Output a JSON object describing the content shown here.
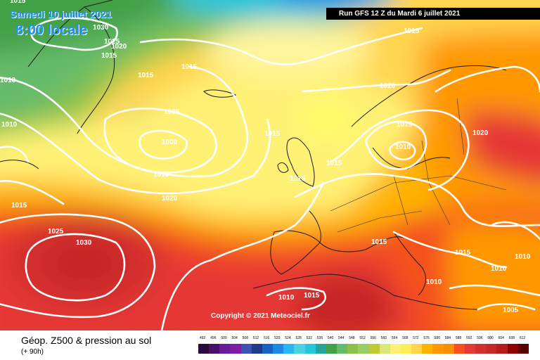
{
  "header": {
    "date": "Samedi 10 juillet 2021",
    "hour": "8:00 locale",
    "run": "Run GFS 12 Z du Mardi 6 juillet 2021"
  },
  "footer": {
    "copyright": "Copyright © 2021 Meteociel.fr",
    "product": "Géop. Z500 & pression au sol",
    "leadtime": "(+ 90h)"
  },
  "legend": {
    "values": [
      "492",
      "496",
      "500",
      "504",
      "508",
      "512",
      "516",
      "520",
      "524",
      "528",
      "532",
      "536",
      "540",
      "544",
      "548",
      "552",
      "556",
      "560",
      "564",
      "568",
      "572",
      "576",
      "580",
      "584",
      "588",
      "592",
      "596",
      "600",
      "604",
      "608",
      "612"
    ],
    "colors": [
      "#2a0a3a",
      "#4a0e6b",
      "#6a1b9a",
      "#7b1fa2",
      "#3f51b5",
      "#1e3a8a",
      "#1565c0",
      "#1e88e5",
      "#29b6f6",
      "#4dd0e1",
      "#26c6da",
      "#26a69a",
      "#43a047",
      "#66bb6a",
      "#8bc34a",
      "#9ccc65",
      "#c0ca33",
      "#dce775",
      "#fff176",
      "#ffee58",
      "#ffd54f",
      "#ffb300",
      "#ff9800",
      "#fb8c00",
      "#f4511e",
      "#e53935",
      "#d32f2f",
      "#c62828",
      "#b71c1c",
      "#8b0000",
      "#5a0000"
    ]
  },
  "isobar_labels": [
    "1015",
    "1030",
    "1025",
    "1020",
    "1015",
    "1015",
    "1015",
    "1010",
    "1010",
    "1005",
    "1000",
    "1010",
    "1020",
    "1015",
    "1015",
    "1015",
    "1015",
    "1015",
    "1010",
    "1020",
    "1020",
    "1025",
    "1030",
    "1015",
    "1015",
    "1015",
    "1010",
    "1010",
    "1010",
    "1010",
    "1015",
    "1005"
  ]
}
